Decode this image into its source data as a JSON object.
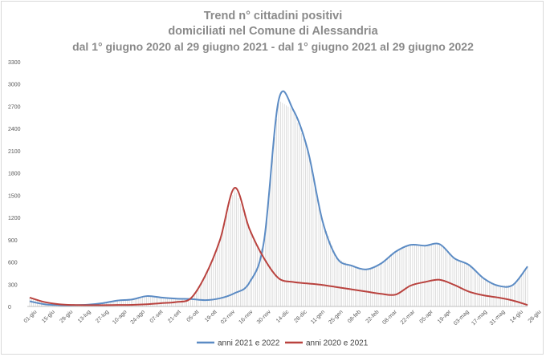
{
  "chart_data": {
    "type": "line",
    "title": [
      "Trend n° cittadini positivi",
      "domiciliati nel Comune di Alessandria",
      "dal 1° giugno 2020 al 29 giugno 2021 - dal 1° giugno 2021 al 29 giugno 2022"
    ],
    "xlabel": "",
    "ylabel": "",
    "ylim": [
      0,
      3300
    ],
    "y_ticks": [
      0,
      300,
      600,
      900,
      1200,
      1500,
      1800,
      2100,
      2400,
      2700,
      3000,
      3300
    ],
    "x_tick_labels": [
      "01-giu",
      "15-giu",
      "29-giu",
      "13-lug",
      "27-lug",
      "10-ago",
      "24-ago",
      "07-set",
      "21-set",
      "05-ott",
      "19-ott",
      "02-nov",
      "16-nov",
      "30-nov",
      "14-dic",
      "28-dic",
      "11-gen",
      "25-gen",
      "08-feb",
      "22-feb",
      "08-mar",
      "22-mar",
      "05-apr",
      "19-apr",
      "03-mag",
      "17-mag",
      "31-mag",
      "14-giu",
      "28-giu"
    ],
    "grid": false,
    "legend_position": "bottom-center",
    "series": [
      {
        "name": "anni 2021 e 2022",
        "color": "#5b8bc4",
        "values": [
          70,
          30,
          18,
          18,
          25,
          45,
          80,
          95,
          140,
          120,
          105,
          100,
          85,
          110,
          180,
          320,
          880,
          2780,
          2650,
          2100,
          1150,
          650,
          550,
          500,
          580,
          740,
          830,
          820,
          840,
          650,
          560,
          380,
          280,
          290,
          540
        ]
      },
      {
        "name": "anni 2020 e 2021",
        "color": "#b9423e",
        "values": [
          120,
          60,
          30,
          20,
          18,
          18,
          20,
          22,
          30,
          45,
          60,
          110,
          420,
          900,
          1600,
          1050,
          650,
          380,
          330,
          310,
          290,
          260,
          230,
          200,
          170,
          160,
          280,
          330,
          360,
          290,
          200,
          150,
          120,
          80,
          20
        ]
      }
    ],
    "hatch_color": "#c8c8c8"
  }
}
